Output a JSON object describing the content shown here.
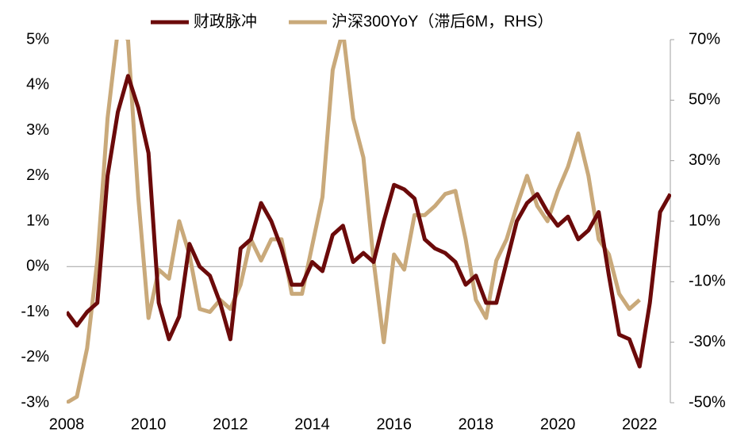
{
  "chart_data": {
    "type": "line",
    "x": [
      2008,
      2008.25,
      2008.5,
      2008.75,
      2009,
      2009.25,
      2009.5,
      2009.75,
      2010,
      2010.25,
      2010.5,
      2010.75,
      2011,
      2011.25,
      2011.5,
      2011.75,
      2012,
      2012.25,
      2012.5,
      2012.75,
      2013,
      2013.25,
      2013.5,
      2013.75,
      2014,
      2014.25,
      2014.5,
      2014.75,
      2015,
      2015.25,
      2015.5,
      2015.75,
      2016,
      2016.25,
      2016.5,
      2016.75,
      2017,
      2017.25,
      2017.5,
      2017.75,
      2018,
      2018.25,
      2018.5,
      2018.75,
      2019,
      2019.25,
      2019.5,
      2019.75,
      2020,
      2020.25,
      2020.5,
      2020.75,
      2021,
      2021.25,
      2021.5,
      2021.75,
      2022,
      2022.25,
      2022.5,
      2022.75
    ],
    "series": [
      {
        "name": "财政脉冲",
        "color": "#6b0a0a",
        "axis": "y",
        "values": [
          -1.0,
          -1.3,
          -1.0,
          -0.8,
          2.0,
          3.4,
          4.2,
          3.5,
          2.5,
          -0.8,
          -1.6,
          -1.1,
          0.5,
          0.0,
          -0.2,
          -0.8,
          -1.6,
          0.4,
          0.6,
          1.4,
          1.0,
          0.4,
          -0.4,
          -0.4,
          0.1,
          -0.1,
          0.7,
          0.9,
          0.1,
          0.3,
          0.1,
          1.0,
          1.8,
          1.7,
          1.5,
          0.6,
          0.4,
          0.3,
          0.1,
          -0.4,
          -0.2,
          -0.8,
          -0.8,
          0.1,
          1.0,
          1.4,
          1.6,
          1.2,
          0.9,
          1.1,
          0.6,
          0.8,
          1.2,
          -0.2,
          -1.5,
          -1.6,
          -2.2,
          -0.8,
          1.2,
          1.6
        ]
      },
      {
        "name": "沪深300YoY（滞后6M，RHS）",
        "color": "#c9a97a",
        "axis": "y2",
        "values": [
          -50,
          -48,
          -32,
          -3,
          44,
          73,
          70,
          18,
          -22,
          -6,
          -9,
          10,
          -1,
          -19,
          -20,
          -16,
          -19,
          -11,
          4,
          -3,
          4,
          4,
          -14,
          -14,
          2,
          18,
          60,
          73,
          44,
          31,
          -3,
          -30,
          -1,
          -6,
          12,
          12,
          15,
          19,
          20,
          4,
          -16,
          -22,
          -3,
          4,
          15,
          25,
          15,
          10,
          20,
          28,
          39,
          25,
          4,
          -1,
          -14,
          -19,
          -16,
          null,
          null,
          null
        ]
      }
    ],
    "xlim": [
      2008,
      2022.75
    ],
    "xticks": [
      2008,
      2010,
      2012,
      2014,
      2016,
      2018,
      2020,
      2022
    ],
    "ylim": [
      -3,
      5
    ],
    "yticks": [
      {
        "value": -3,
        "label": "-3%"
      },
      {
        "value": -2,
        "label": "-2%"
      },
      {
        "value": -1,
        "label": "-1%"
      },
      {
        "value": 0,
        "label": "0%"
      },
      {
        "value": 1,
        "label": "1%"
      },
      {
        "value": 2,
        "label": "2%"
      },
      {
        "value": 3,
        "label": "3%"
      },
      {
        "value": 4,
        "label": "4%"
      },
      {
        "value": 5,
        "label": "5%"
      }
    ],
    "y2lim": [
      -50,
      70
    ],
    "y2ticks": [
      {
        "value": -50,
        "label": "-50%"
      },
      {
        "value": -30,
        "label": "-30%"
      },
      {
        "value": -10,
        "label": "-10%"
      },
      {
        "value": 10,
        "label": "10%"
      },
      {
        "value": 30,
        "label": "30%"
      },
      {
        "value": 50,
        "label": "50%"
      },
      {
        "value": 70,
        "label": "70%"
      }
    ],
    "legend": "top"
  }
}
